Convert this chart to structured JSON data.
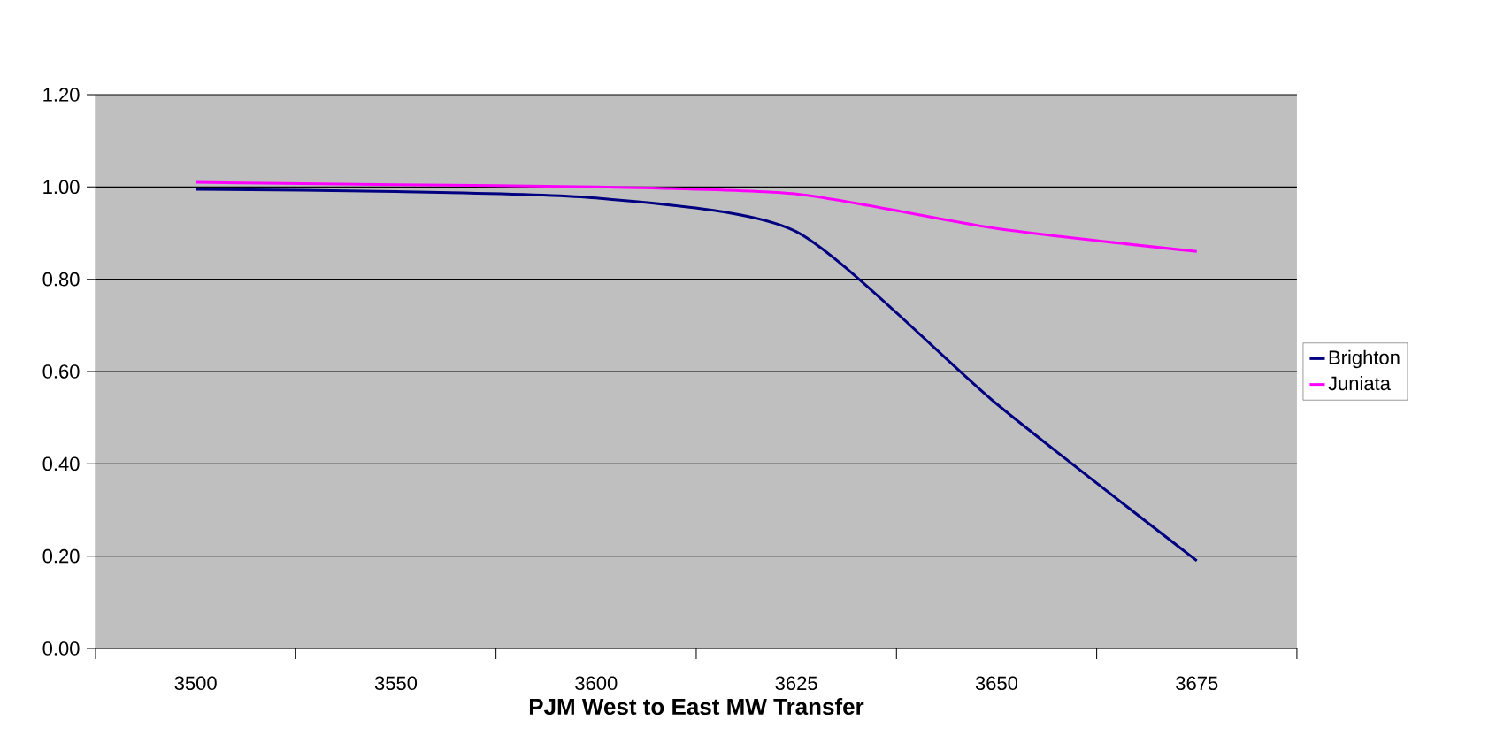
{
  "chart_data": {
    "type": "line",
    "xlabel": "PJM West to East MW Transfer",
    "categories": [
      "3500",
      "3550",
      "3600",
      "3625",
      "3650",
      "3675"
    ],
    "series": [
      {
        "name": "Brighton",
        "color": "#000080",
        "values": [
          0.995,
          0.99,
          0.976,
          0.903,
          0.53,
          0.19
        ]
      },
      {
        "name": "Juniata",
        "color": "#ff00ff",
        "values": [
          1.01,
          1.005,
          1.0,
          0.985,
          0.91,
          0.86
        ]
      }
    ],
    "ylim": [
      0,
      1.2
    ],
    "yticks": [
      {
        "value": 0,
        "label": "0.00"
      },
      {
        "value": 0.2,
        "label": "0.20"
      },
      {
        "value": 0.4,
        "label": "0.40"
      },
      {
        "value": 0.6,
        "label": "0.60"
      },
      {
        "value": 0.8,
        "label": "0.80"
      },
      {
        "value": 1,
        "label": "1.00"
      },
      {
        "value": 1.2,
        "label": "1.20"
      }
    ],
    "grid": "y",
    "legend": "right",
    "marker": "none",
    "line_style": "solid"
  }
}
